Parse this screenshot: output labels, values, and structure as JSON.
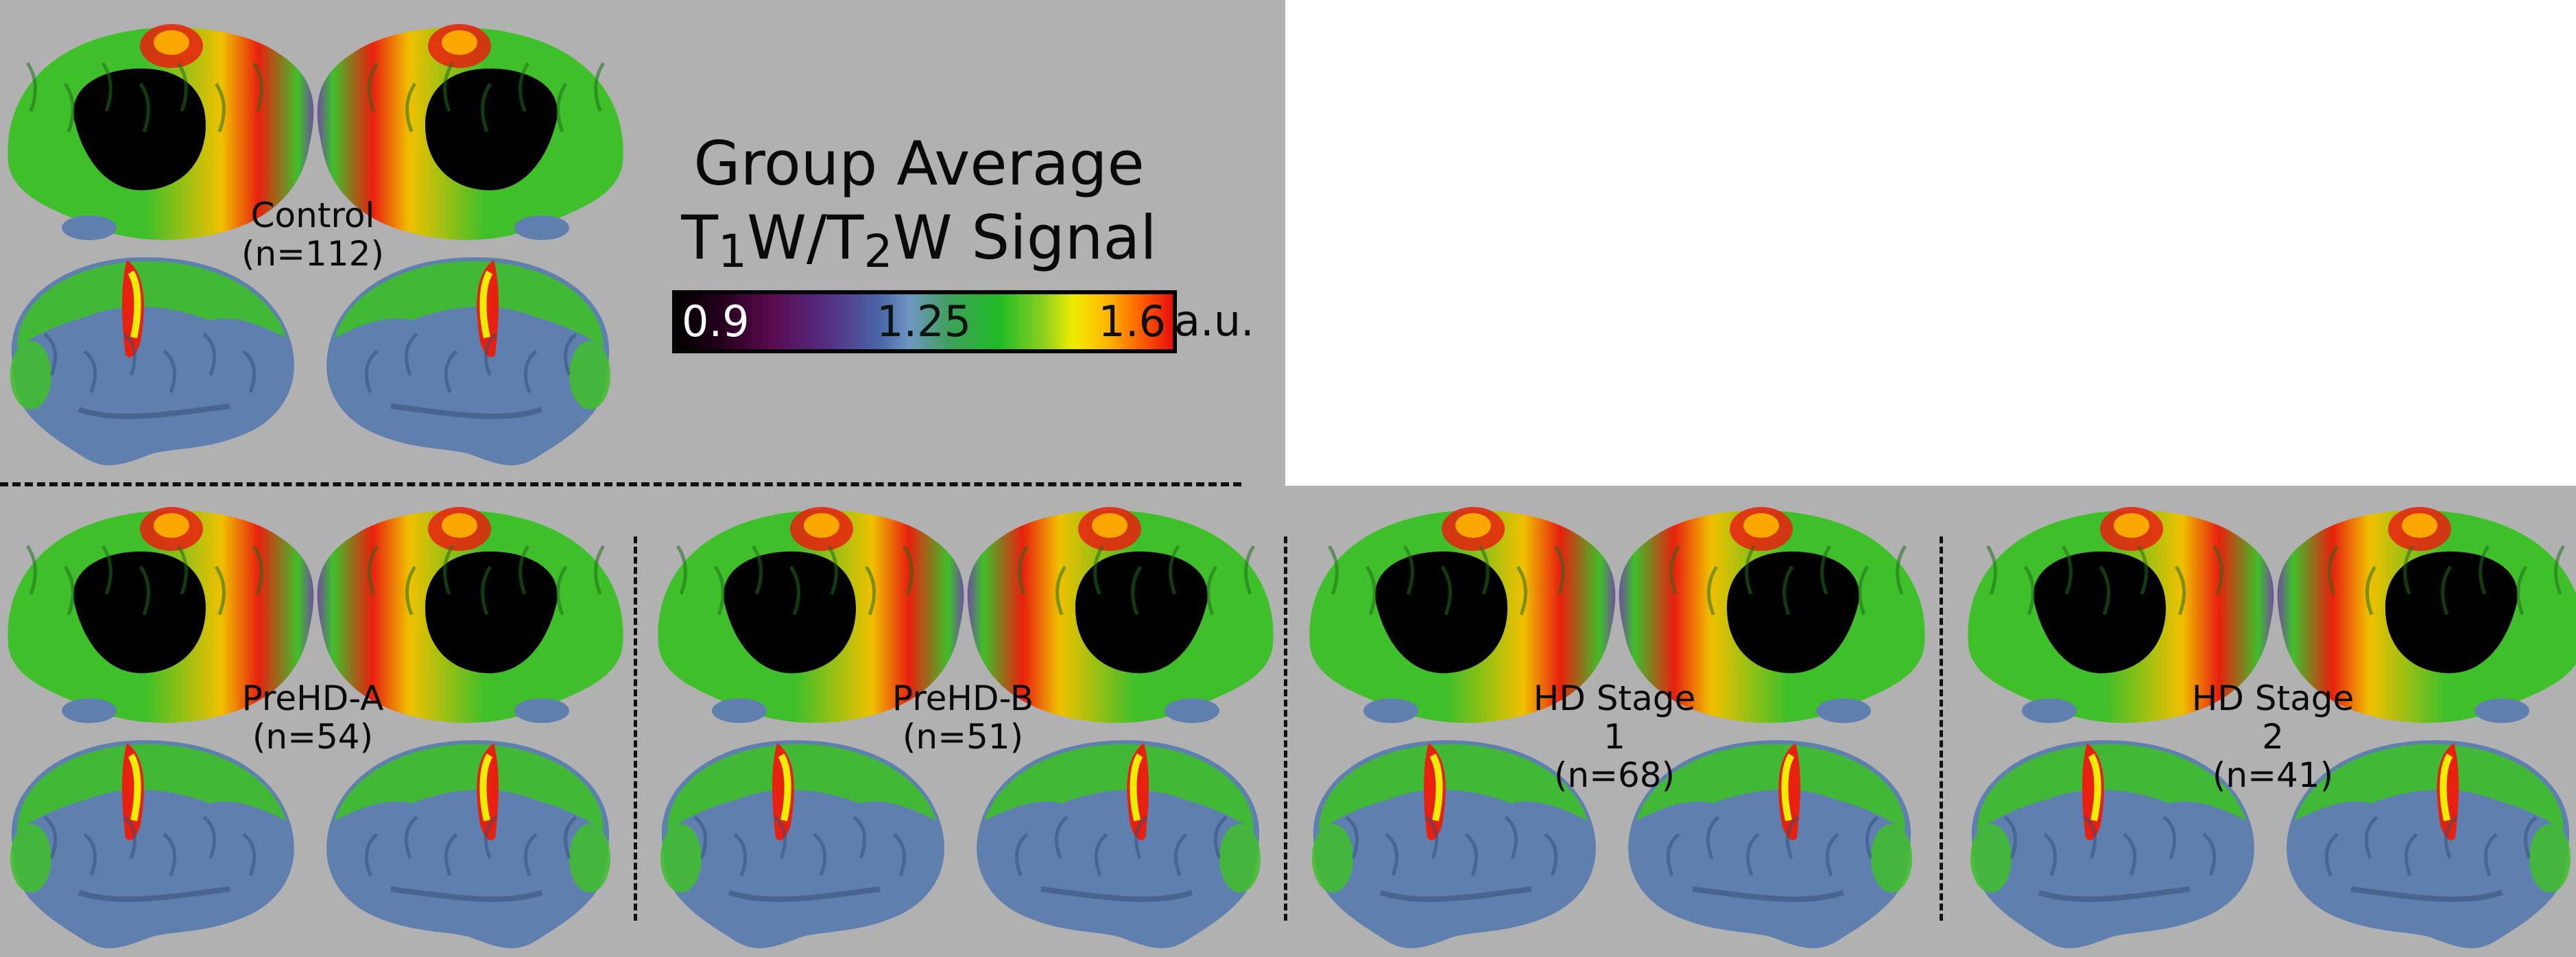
{
  "legend": {
    "title_line1": "Group Average",
    "title_line2_parts": [
      "T",
      "1",
      "W/T",
      "2",
      "W Signal"
    ],
    "scale_min": "0.9",
    "scale_mid": "1.25",
    "scale_max": "1.6",
    "unit": "a.u.",
    "colormap": [
      "#000000",
      "#5a0a4e",
      "#552c82",
      "#6f96c2",
      "#1fba26",
      "#f0ec00",
      "#ffb400",
      "#e60f0f"
    ]
  },
  "groups": [
    {
      "name": "Control",
      "n_label": "(n=112)"
    },
    {
      "name": "PreHD-A",
      "n_label": "(n=54)"
    },
    {
      "name": "PreHD-B",
      "n_label": "(n=51)"
    },
    {
      "name": "HD Stage 1",
      "n_label": "(n=68)"
    },
    {
      "name": "HD Stage 2",
      "n_label": "(n=41)"
    }
  ],
  "colors": {
    "panel_background": "#b1b1b1",
    "medial_wall": "#000000",
    "cortex_low": "#5f7fae",
    "cortex_mid": "#3fbf2a",
    "cortex_high": "#e8200f"
  }
}
